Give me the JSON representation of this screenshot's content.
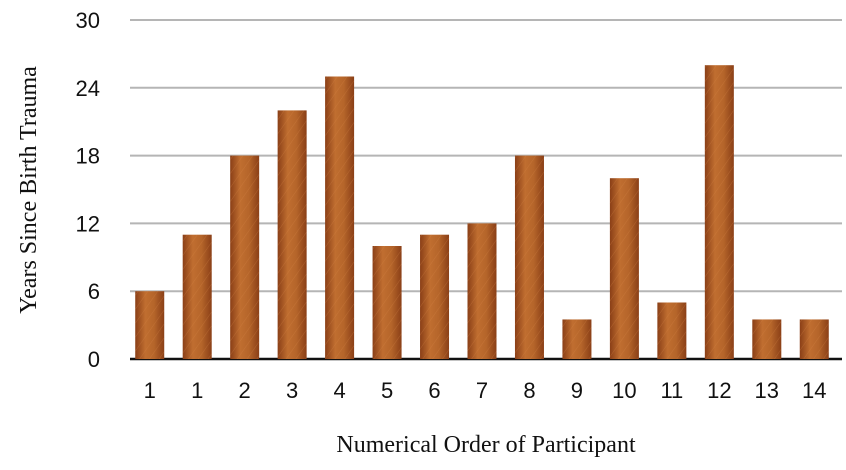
{
  "chart_data": {
    "type": "bar",
    "categories": [
      "1",
      "1",
      "2",
      "3",
      "4",
      "5",
      "6",
      "7",
      "8",
      "9",
      "10",
      "11",
      "12",
      "13",
      "14"
    ],
    "values": [
      6,
      11,
      18,
      22,
      25,
      10,
      11,
      12,
      18,
      3.5,
      16,
      5,
      26,
      3.5,
      3.5
    ],
    "title": "",
    "xlabel": "Numerical Order of Participant",
    "ylabel": "Years Since Birth Trauma",
    "ylim": [
      0,
      30
    ],
    "yticks": [
      "0",
      "6",
      "12",
      "18",
      "24",
      "30"
    ],
    "grid": true,
    "legend": "none",
    "bar_color": "#b5652a",
    "bar_color_dark": "#8a3f17"
  }
}
